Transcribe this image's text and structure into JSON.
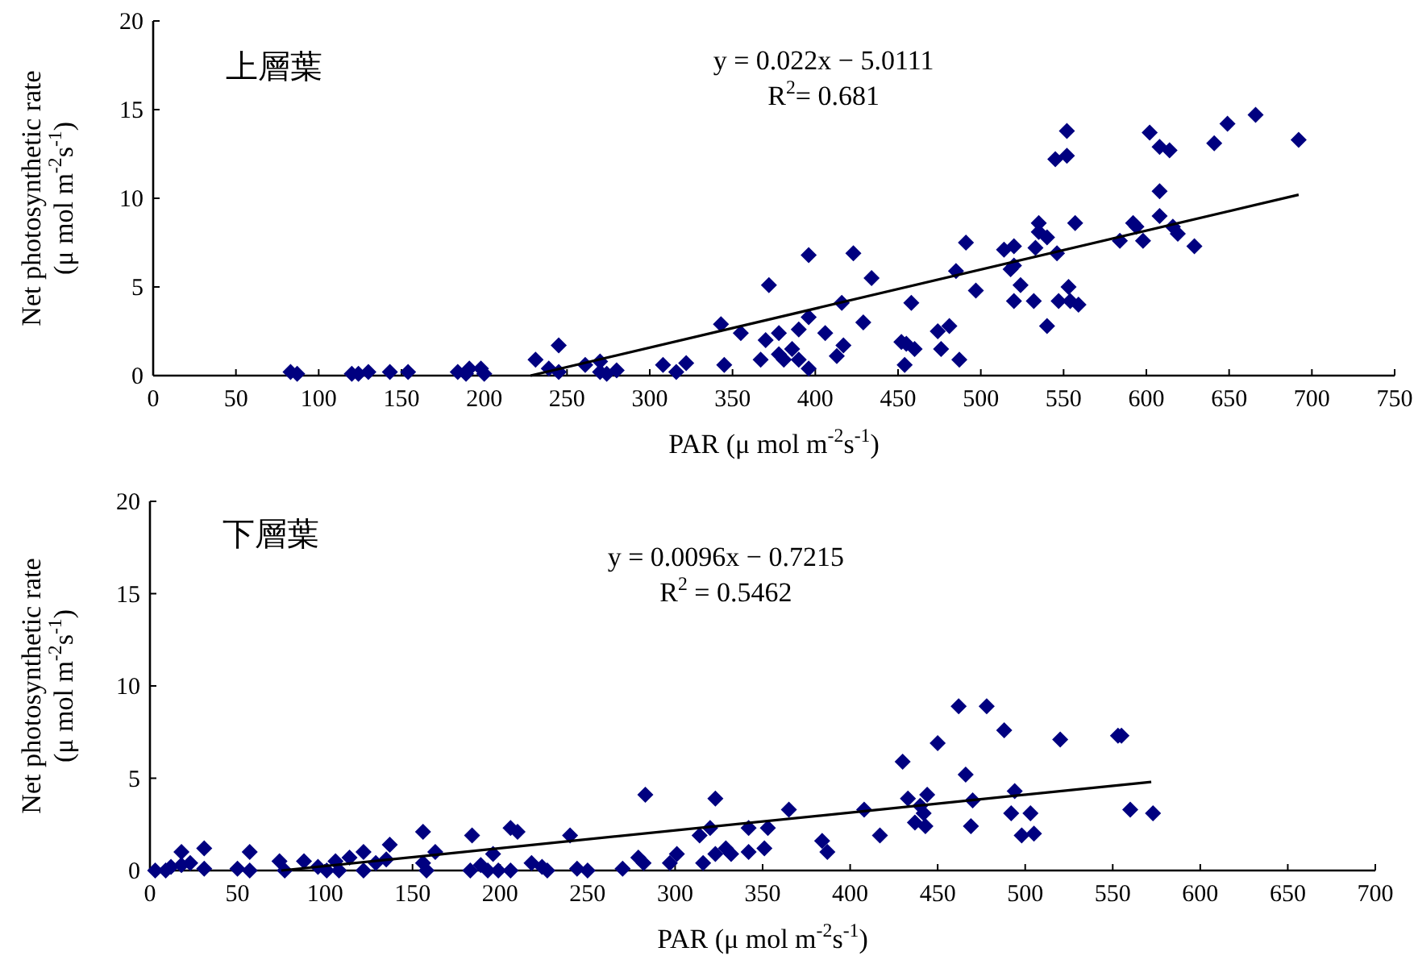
{
  "chart_data": [
    {
      "type": "scatter",
      "title": "上層葉",
      "annotations": [
        "y = 0.022x − 5.0111",
        "R$^{2}$= 0.681"
      ],
      "xlabel": "PAR (μ mol m$^{-2}$s$^{-1}$)",
      "ylabel": "Net photosynthetic rate (μ mol m$^{-2}$s$^{-1}$)",
      "xlim": [
        0,
        750
      ],
      "xticks": [
        0,
        50,
        100,
        150,
        200,
        250,
        300,
        350,
        400,
        450,
        500,
        550,
        600,
        650,
        700,
        750
      ],
      "ylim": [
        0,
        20
      ],
      "yticks": [
        0,
        5,
        10,
        15,
        20
      ],
      "marker": "diamond",
      "grid": false,
      "series": [
        {
          "color": "#000080",
          "x": [
            83,
            87,
            120,
            124,
            130,
            143,
            154,
            184,
            189,
            191,
            198,
            200,
            231,
            239,
            245,
            245,
            261,
            270,
            270,
            274,
            280,
            308,
            316,
            322,
            343,
            345,
            355,
            367,
            370,
            372,
            378,
            378,
            381,
            386,
            390,
            390,
            396,
            396,
            396,
            406,
            413,
            416,
            417,
            423,
            429,
            434,
            452,
            455,
            454,
            458,
            460,
            474,
            476,
            481,
            485,
            487,
            491,
            497,
            514,
            518,
            520,
            520,
            520,
            524,
            532,
            533,
            535,
            535,
            540,
            540,
            545,
            546,
            547,
            552,
            552,
            553,
            554,
            557,
            559,
            584,
            592,
            594,
            598,
            602,
            608,
            608,
            608,
            614,
            616,
            619,
            629,
            641,
            649,
            666,
            692
          ],
          "values": [
            0.2,
            0.1,
            0.1,
            0.1,
            0.2,
            0.2,
            0.2,
            0.2,
            0.1,
            0.4,
            0.4,
            0.1,
            0.9,
            0.4,
            1.7,
            0.2,
            0.6,
            0.8,
            0.2,
            0.1,
            0.3,
            0.6,
            0.2,
            0.7,
            2.9,
            0.6,
            2.4,
            0.9,
            2.0,
            5.1,
            2.4,
            1.2,
            0.9,
            1.5,
            2.6,
            0.9,
            6.8,
            3.3,
            0.4,
            2.4,
            1.1,
            4.1,
            1.7,
            6.9,
            3.0,
            5.5,
            1.9,
            1.8,
            0.6,
            4.1,
            1.5,
            2.5,
            1.5,
            2.8,
            5.9,
            0.9,
            7.5,
            4.8,
            7.1,
            6.0,
            7.3,
            6.2,
            4.2,
            5.1,
            4.2,
            7.2,
            8.6,
            8.1,
            7.8,
            2.8,
            12.2,
            6.9,
            4.2,
            12.4,
            13.8,
            5.0,
            4.2,
            8.6,
            4.0,
            7.6,
            8.6,
            8.4,
            7.6,
            13.7,
            12.9,
            10.4,
            9.0,
            12.7,
            8.4,
            8.0,
            7.3,
            13.1,
            14.2,
            14.7,
            13.3
          ]
        },
        {
          "type": "line",
          "color": "#000000",
          "marker": "none",
          "x": [
            228,
            692
          ],
          "values": [
            0.0,
            10.2
          ]
        }
      ]
    },
    {
      "type": "scatter",
      "title": "下層葉",
      "annotations": [
        "y = 0.0096x − 0.7215",
        "R$^{2}$ = 0.5462"
      ],
      "xlabel": "PAR (μ mol m$^{-2}$s$^{-1}$)",
      "ylabel": "Net photosynthetic rate (μ mol m$^{-2}$s$^{-1}$)",
      "xlim": [
        0,
        700
      ],
      "xticks": [
        0,
        50,
        100,
        150,
        200,
        250,
        300,
        350,
        400,
        450,
        500,
        550,
        600,
        650,
        700
      ],
      "ylim": [
        0,
        20
      ],
      "yticks": [
        0,
        5,
        10,
        15,
        20
      ],
      "marker": "diamond",
      "grid": false,
      "series": [
        {
          "color": "#000080",
          "x": [
            3,
            9,
            12,
            18,
            18,
            23,
            31,
            31,
            50,
            57,
            57,
            74,
            77,
            88,
            96,
            101,
            106,
            108,
            114,
            122,
            122,
            129,
            137,
            135,
            156,
            156,
            158,
            163,
            184,
            183,
            189,
            193,
            196,
            199,
            206,
            210,
            206,
            218,
            224,
            227,
            240,
            244,
            250,
            270,
            279,
            283,
            282,
            297,
            301,
            314,
            320,
            323,
            316,
            323,
            329,
            332,
            342,
            342,
            351,
            353,
            365,
            384,
            387,
            408,
            417,
            430,
            433,
            437,
            440,
            444,
            443,
            442,
            450,
            462,
            466,
            470,
            469,
            478,
            488,
            494,
            492,
            498,
            503,
            505,
            520,
            553,
            555,
            560,
            573
          ],
          "values": [
            0,
            0,
            0.2,
            1.0,
            0.3,
            0.4,
            1.2,
            0.1,
            0.1,
            1.0,
            0,
            0.5,
            0,
            0.5,
            0.2,
            0,
            0.5,
            0,
            0.7,
            1.0,
            0,
            0.4,
            1.4,
            0.6,
            2.1,
            0.4,
            0,
            1.0,
            1.9,
            0,
            0.3,
            0,
            0.9,
            0,
            2.3,
            2.1,
            0,
            0.4,
            0.2,
            0,
            1.9,
            0.1,
            0,
            0.1,
            0.7,
            4.1,
            0.4,
            0.4,
            0.9,
            1.9,
            2.3,
            3.9,
            0.4,
            0.9,
            1.2,
            0.9,
            1.0,
            2.3,
            1.2,
            2.3,
            3.3,
            1.6,
            1.0,
            3.3,
            1.9,
            5.9,
            3.9,
            2.6,
            3.5,
            4.1,
            2.4,
            3.1,
            6.9,
            8.9,
            5.2,
            3.8,
            2.4,
            8.9,
            7.6,
            4.3,
            3.1,
            1.9,
            3.1,
            2.0,
            7.1,
            7.3,
            7.3,
            3.3,
            3.1
          ]
        },
        {
          "type": "line",
          "color": "#000000",
          "marker": "none",
          "x": [
            75,
            572
          ],
          "values": [
            0.0,
            4.8
          ]
        }
      ]
    }
  ]
}
